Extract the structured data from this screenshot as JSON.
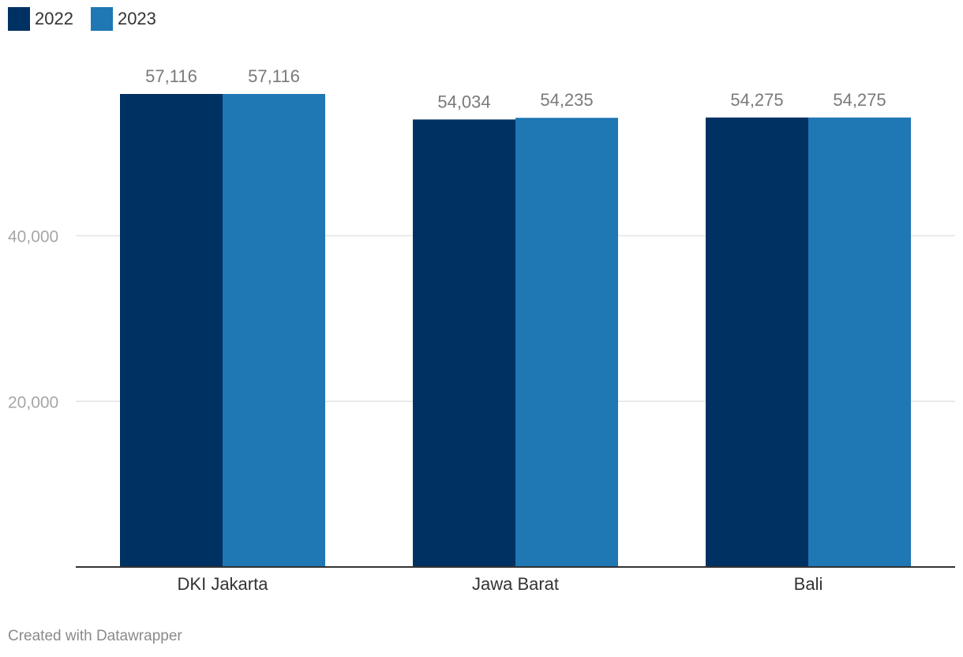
{
  "legend": [
    {
      "label": "2022",
      "color": "#003163"
    },
    {
      "label": "2023",
      "color": "#1f77b4"
    }
  ],
  "chart_data": {
    "type": "bar",
    "categories": [
      "DKI Jakarta",
      "Jawa Barat",
      "Bali"
    ],
    "series": [
      {
        "name": "2022",
        "color": "#003163",
        "values": [
          57116,
          54034,
          54275
        ],
        "labels": [
          "57,116",
          "54,034",
          "54,275"
        ]
      },
      {
        "name": "2023",
        "color": "#1f77b4",
        "values": [
          57116,
          54235,
          54275
        ],
        "labels": [
          "57,116",
          "54,235",
          "54,275"
        ]
      }
    ],
    "yticks": [
      20000,
      40000
    ],
    "ytick_labels": [
      "20,000",
      "40,000"
    ],
    "ylim": [
      0,
      57116
    ],
    "grid": true,
    "legend_position": "top-left"
  },
  "footer": {
    "credit": "Created with Datawrapper"
  }
}
